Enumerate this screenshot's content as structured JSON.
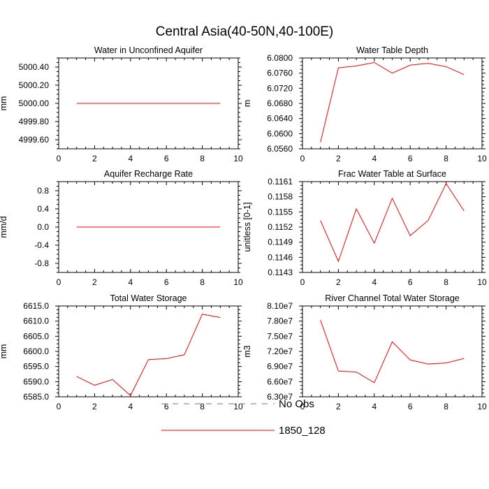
{
  "title": "Central Asia(40-50N,40-100E)",
  "colors": {
    "series": "#ff0000",
    "obs": "#6b6bd6",
    "axis": "#000000"
  },
  "legend": {
    "items": [
      {
        "label": "No Obs",
        "style": "dashed",
        "color": "#6b6bd6"
      },
      {
        "label": "1850_128",
        "style": "solid",
        "color": "#ff0000"
      }
    ]
  },
  "chart_data": [
    {
      "type": "line",
      "title": "Water in Unconfined Aquifer",
      "ylabel": "mm",
      "xlim": [
        0,
        10
      ],
      "xticks": [
        "0",
        "2",
        "4",
        "6",
        "8",
        "10"
      ],
      "ylim": [
        4999.5,
        5000.5
      ],
      "yticks": [
        "4999.60",
        "4999.80",
        "5000.00",
        "5000.20",
        "5000.40"
      ],
      "yticks_values": [
        4999.6,
        4999.8,
        5000.0,
        5000.2,
        5000.4
      ],
      "series": [
        {
          "x": [
            1,
            2,
            3,
            4,
            5,
            6,
            7,
            8,
            9
          ],
          "values": [
            5000,
            5000,
            5000,
            5000,
            5000,
            5000,
            5000,
            5000,
            5000
          ]
        }
      ]
    },
    {
      "type": "line",
      "title": "Water Table Depth",
      "ylabel": "m",
      "xlim": [
        0,
        10
      ],
      "xticks": [
        "0",
        "2",
        "4",
        "6",
        "8",
        "10"
      ],
      "ylim": [
        6.056,
        6.08
      ],
      "yticks": [
        "6.0560",
        "6.0600",
        "6.0640",
        "6.0680",
        "6.0720",
        "6.0760",
        "6.0800"
      ],
      "yticks_values": [
        6.056,
        6.06,
        6.064,
        6.068,
        6.072,
        6.076,
        6.08
      ],
      "series": [
        {
          "x": [
            1,
            2,
            3,
            4,
            5,
            6,
            7,
            8,
            9
          ],
          "values": [
            6.0577,
            6.0774,
            6.0779,
            6.0788,
            6.076,
            6.0781,
            6.0786,
            6.0777,
            6.0756
          ]
        }
      ]
    },
    {
      "type": "line",
      "title": "Aquifer Recharge Rate",
      "ylabel": "mm/d",
      "xlim": [
        0,
        10
      ],
      "xticks": [
        "0",
        "2",
        "4",
        "6",
        "8",
        "10"
      ],
      "ylim": [
        -1,
        1
      ],
      "yticks": [
        "-0.8",
        "-0.4",
        "0.0",
        "0.4",
        "0.8"
      ],
      "yticks_values": [
        -0.8,
        -0.4,
        0.0,
        0.4,
        0.8
      ],
      "series": [
        {
          "x": [
            1,
            2,
            3,
            4,
            5,
            6,
            7,
            8,
            9
          ],
          "values": [
            0,
            0,
            0,
            0,
            0,
            0,
            0,
            0,
            0
          ]
        }
      ]
    },
    {
      "type": "line",
      "title": "Frac Water Table at Surface",
      "ylabel": "unitless [0-1]",
      "xlim": [
        0,
        10
      ],
      "xticks": [
        "0",
        "2",
        "4",
        "6",
        "8",
        "10"
      ],
      "ylim": [
        0.1143,
        0.1161
      ],
      "yticks": [
        "0.1143",
        "0.1146",
        "0.1149",
        "0.1152",
        "0.1155",
        "0.1158",
        "0.1161"
      ],
      "yticks_values": [
        0.1143,
        0.1146,
        0.1149,
        0.1152,
        0.1155,
        0.1158,
        0.1161
      ],
      "series": [
        {
          "x": [
            1,
            2,
            3,
            4,
            5,
            6,
            7,
            8,
            9
          ],
          "values": [
            0.11533,
            0.11452,
            0.11556,
            0.11488,
            0.11577,
            0.11503,
            0.11533,
            0.11606,
            0.11552
          ]
        }
      ]
    },
    {
      "type": "line",
      "title": "Total Water Storage",
      "ylabel": "mm",
      "xlim": [
        0,
        10
      ],
      "xticks": [
        "0",
        "2",
        "4",
        "6",
        "8",
        "10"
      ],
      "ylim": [
        6585,
        6615
      ],
      "yticks": [
        "6585.0",
        "6590.0",
        "6595.0",
        "6600.0",
        "6605.0",
        "6610.0",
        "6615.0"
      ],
      "yticks_values": [
        6585,
        6590,
        6595,
        6600,
        6605,
        6610,
        6615
      ],
      "series": [
        {
          "x": [
            1,
            2,
            3,
            4,
            5,
            6,
            7,
            8,
            9
          ],
          "values": [
            6591.7,
            6588.8,
            6590.7,
            6585.4,
            6597.3,
            6597.6,
            6598.9,
            6612.3,
            6611.2
          ]
        }
      ]
    },
    {
      "type": "line",
      "title": "River Channel Total Water Storage",
      "ylabel": "m3",
      "xlim": [
        0,
        10
      ],
      "xticks": [
        "0",
        "2",
        "4",
        "6",
        "8",
        "10"
      ],
      "ylim": [
        63000000,
        81000000
      ],
      "yticks": [
        "6.30e7",
        "6.60e7",
        "6.90e7",
        "7.20e7",
        "7.50e7",
        "7.80e7",
        "8.10e7"
      ],
      "yticks_values": [
        63000000,
        66000000,
        69000000,
        72000000,
        75000000,
        78000000,
        81000000
      ],
      "series": [
        {
          "x": [
            1,
            2,
            3,
            4,
            5,
            6,
            7,
            8,
            9
          ],
          "values": [
            78200000,
            68100000,
            67900000,
            65800000,
            73900000,
            70300000,
            69500000,
            69700000,
            70600000
          ]
        }
      ]
    }
  ]
}
